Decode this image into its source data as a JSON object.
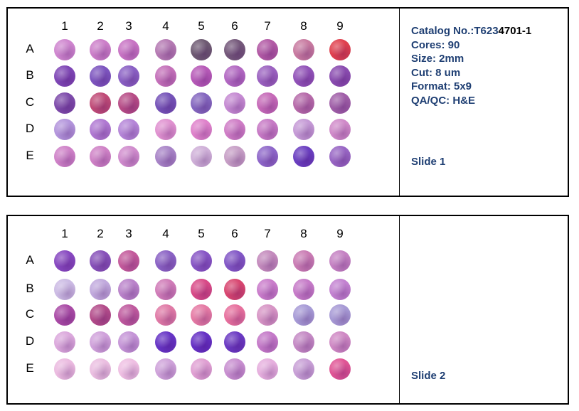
{
  "columns": [
    "1",
    "2",
    "3",
    "4",
    "5",
    "6",
    "7",
    "8",
    "9"
  ],
  "rows": [
    "A",
    "B",
    "C",
    "D",
    "E"
  ],
  "colors": {
    "border": "#000000",
    "info_text": "#1f3f73",
    "catalog_dark": "#000000",
    "stain_pink": "#d989c9",
    "stain_purple": "#8a4fc0",
    "stain_red": "#e0405a"
  },
  "slide1": {
    "info": {
      "catalog_label": "Catalog No.:",
      "catalog_prefix": "T623",
      "catalog_suffix": "4701-1",
      "cores": "Cores: 90",
      "size": "Size: 2mm",
      "cut": "Cut: 8 um",
      "format": "Format: 5x9",
      "qa": "QA/QC: H&E"
    },
    "name": "Slide 1",
    "cores": [
      [
        "#cf86cf",
        "#cc7fc9",
        "#c874c4",
        "#b57ab3",
        "#6e5a72",
        "#74587a",
        "#b25aa5",
        "#c87aa0",
        "#e0404e"
      ],
      [
        "#7e46b5",
        "#7d55bf",
        "#8a60c4",
        "#c470b9",
        "#b75ab8",
        "#b268c2",
        "#9b62c0",
        "#9152b8",
        "#8a4cb0"
      ],
      [
        "#7d4aaa",
        "#c04b77",
        "#b74c86",
        "#7553b8",
        "#8467bf",
        "#c58ad2",
        "#c66ab8",
        "#b66aa9",
        "#a05fa8"
      ],
      [
        "#b395dc",
        "#b079d2",
        "#b586d8",
        "#e092d0",
        "#df82cb",
        "#cf7dc6",
        "#c77ac5",
        "#c59ad6",
        "#d08ac9"
      ],
      [
        "#cf82c8",
        "#cf82c6",
        "#d08ccd",
        "#a884c7",
        "#cfb0d8",
        "#c79fc6",
        "#8e67c9",
        "#6a3ec0",
        "#9866c4"
      ]
    ]
  },
  "slide2": {
    "name": "Slide 2",
    "cores": [
      [
        "#8748c0",
        "#8751b9",
        "#c35a9b",
        "#8a62c4",
        "#8755c5",
        "#8257c6",
        "#c48bbd",
        "#ca7cb4",
        "#c582c3"
      ],
      [
        "#ccbbe4",
        "#c1a9dd",
        "#ba83ca",
        "#d07cb8",
        "#d84a87",
        "#d84670",
        "#ca7dcb",
        "#c67bc8",
        "#c382d1"
      ],
      [
        "#a94aa5",
        "#b34c8a",
        "#bf5a9e",
        "#e07aa6",
        "#e57aa4",
        "#e7709d",
        "#d795c5",
        "#a79bd6",
        "#a79ad5"
      ],
      [
        "#dba8dc",
        "#d0a2db",
        "#c595d7",
        "#6634c5",
        "#6530c4",
        "#6a39c2",
        "#c479c8",
        "#c489c4",
        "#cf89c4"
      ],
      [
        "#ebbbe0",
        "#ebbfe1",
        "#efc0e3",
        "#cfa3da",
        "#e0a0d3",
        "#c88fd0",
        "#e6b0de",
        "#c8a0d6",
        "#e05595"
      ]
    ]
  }
}
